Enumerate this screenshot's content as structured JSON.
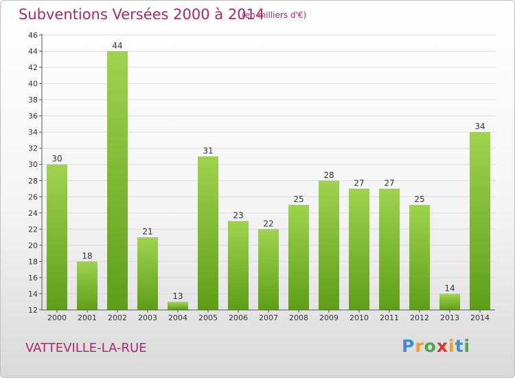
{
  "header": {
    "title": "Subventions Versées 2000 à 2014",
    "unit": "(en milliers d'€)"
  },
  "footer": {
    "commune": "VATTEVILLE-LA-RUE",
    "logo_text": "Proxiti"
  },
  "colors": {
    "title": "#b3246f",
    "bar_light": "#9fd34e",
    "bar_dark": "#5f9e18",
    "axis": "#555555",
    "grid": "#dcdcdc"
  },
  "chart_data": {
    "type": "bar",
    "title": "Subventions Versées 2000 à 2014",
    "subtitle": "(en milliers d'€)",
    "xlabel": "",
    "ylabel": "",
    "categories": [
      "2000",
      "2001",
      "2002",
      "2003",
      "2004",
      "2005",
      "2006",
      "2007",
      "2008",
      "2009",
      "2010",
      "2011",
      "2012",
      "2013",
      "2014"
    ],
    "values": [
      30,
      18,
      44,
      21,
      13,
      31,
      23,
      22,
      25,
      28,
      27,
      27,
      25,
      14,
      34
    ],
    "ylim": [
      12,
      46
    ],
    "yticks": [
      12,
      14,
      16,
      18,
      20,
      22,
      24,
      26,
      28,
      30,
      32,
      34,
      36,
      38,
      40,
      42,
      44,
      46
    ],
    "grid": true,
    "legend": "none"
  }
}
